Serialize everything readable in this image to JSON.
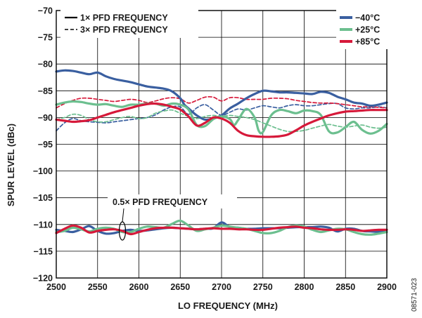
{
  "chart_data": {
    "type": "line",
    "xlabel": "LO FREQUENCY (MHz)",
    "ylabel": "SPUR LEVEL (dBc)",
    "xlim": [
      2500,
      2900
    ],
    "ylim": [
      -120,
      -70
    ],
    "x_ticks": [
      "2500",
      "2550",
      "2600",
      "2650",
      "2700",
      "2750",
      "2800",
      "2850",
      "2900"
    ],
    "y_ticks": [
      "−70",
      "−75",
      "−80",
      "−85",
      "−90",
      "−95",
      "−100",
      "−105",
      "−110",
      "−115",
      "−120"
    ],
    "grid": true,
    "style_legend": {
      "placement": "top-left",
      "entries": [
        {
          "label": "1× PFD FREQUENCY",
          "dash": "solid"
        },
        {
          "label": "3× PFD FREQUENCY",
          "dash": "dashed"
        }
      ]
    },
    "color_legend": {
      "placement": "top-right",
      "entries": [
        {
          "label": "−40°C",
          "color": "#3a5fa0"
        },
        {
          "label": "+25°C",
          "color": "#6cbf8f"
        },
        {
          "label": "+85°C",
          "color": "#d6193a"
        }
      ]
    },
    "annotation": {
      "text": "0.5× PFD FREQUENCY",
      "x": 2575,
      "y": -106,
      "points_to": [
        2583,
        -111
      ]
    },
    "figure_id": "08571-023",
    "series": [
      {
        "name": "−40°C",
        "group": "1× PFD FREQUENCY",
        "color": "#3a5fa0",
        "dash": "solid",
        "x": [
          2500,
          2510,
          2520,
          2530,
          2540,
          2550,
          2560,
          2570,
          2580,
          2590,
          2600,
          2610,
          2620,
          2630,
          2640,
          2650,
          2655,
          2660,
          2670,
          2680,
          2690,
          2700,
          2710,
          2720,
          2730,
          2740,
          2750,
          2760,
          2770,
          2780,
          2790,
          2800,
          2810,
          2820,
          2830,
          2840,
          2850,
          2860,
          2870,
          2880,
          2890,
          2900
        ],
        "y": [
          -81.4,
          -81.2,
          -81.3,
          -81.6,
          -81.9,
          -81.6,
          -82.3,
          -82.8,
          -83.1,
          -83.4,
          -83.8,
          -84.2,
          -84.4,
          -84.6,
          -85.1,
          -86.4,
          -87.6,
          -88.3,
          -89.6,
          -90.4,
          -90.2,
          -89.6,
          -88.3,
          -87.4,
          -86.4,
          -85.6,
          -85.0,
          -85.1,
          -85.3,
          -85.3,
          -85.4,
          -85.5,
          -85.6,
          -85.2,
          -85.4,
          -86.1,
          -86.6,
          -87.2,
          -87.4,
          -87.8,
          -87.6,
          -87.2
        ]
      },
      {
        "name": "+25°C",
        "group": "1× PFD FREQUENCY",
        "color": "#6cbf8f",
        "dash": "solid",
        "x": [
          2500,
          2510,
          2520,
          2530,
          2540,
          2550,
          2560,
          2570,
          2580,
          2590,
          2600,
          2610,
          2620,
          2630,
          2640,
          2650,
          2660,
          2670,
          2680,
          2690,
          2700,
          2710,
          2715,
          2720,
          2730,
          2740,
          2745,
          2750,
          2760,
          2770,
          2780,
          2790,
          2800,
          2810,
          2820,
          2830,
          2840,
          2850,
          2860,
          2870,
          2880,
          2890,
          2900
        ],
        "y": [
          -87.6,
          -87.2,
          -87.0,
          -87.1,
          -87.4,
          -87.6,
          -87.5,
          -87.8,
          -88.0,
          -87.6,
          -87.6,
          -87.4,
          -87.4,
          -87.8,
          -87.4,
          -87.6,
          -88.5,
          -91.4,
          -91.6,
          -90.3,
          -89.8,
          -90.3,
          -91.4,
          -90.5,
          -88.4,
          -90.0,
          -92.5,
          -92.7,
          -89.6,
          -88.6,
          -88.8,
          -89.2,
          -88.7,
          -88.8,
          -89.5,
          -92.6,
          -92.8,
          -91.8,
          -90.8,
          -92.3,
          -93.0,
          -92.5,
          -91.2
        ]
      },
      {
        "name": "+85°C",
        "group": "1× PFD FREQUENCY",
        "color": "#d6193a",
        "dash": "solid",
        "x": [
          2500,
          2510,
          2520,
          2530,
          2540,
          2550,
          2560,
          2570,
          2580,
          2590,
          2600,
          2610,
          2620,
          2630,
          2640,
          2650,
          2660,
          2670,
          2680,
          2690,
          2700,
          2710,
          2720,
          2730,
          2740,
          2750,
          2760,
          2770,
          2780,
          2790,
          2800,
          2810,
          2820,
          2830,
          2840,
          2850,
          2860,
          2870,
          2880,
          2890,
          2900
        ],
        "y": [
          -90.4,
          -90.6,
          -90.8,
          -90.7,
          -90.5,
          -90.0,
          -89.5,
          -89.0,
          -88.6,
          -88.2,
          -87.8,
          -87.5,
          -87.4,
          -87.6,
          -88.0,
          -88.5,
          -89.8,
          -91.5,
          -91.0,
          -90.0,
          -90.2,
          -91.0,
          -92.5,
          -93.3,
          -93.5,
          -93.6,
          -93.6,
          -93.5,
          -93.2,
          -92.4,
          -91.5,
          -90.8,
          -90.2,
          -89.6,
          -89.2,
          -88.9,
          -88.8,
          -88.7,
          -88.6,
          -88.6,
          -88.6
        ]
      },
      {
        "name": "−40°C",
        "group": "3× PFD FREQUENCY",
        "color": "#3a5fa0",
        "dash": "dashed",
        "x": [
          2500,
          2510,
          2520,
          2530,
          2540,
          2550,
          2560,
          2570,
          2580,
          2590,
          2600,
          2610,
          2620,
          2630,
          2640,
          2650,
          2660,
          2670,
          2680,
          2690,
          2700,
          2710,
          2720,
          2730,
          2740,
          2750,
          2760,
          2770,
          2780,
          2790,
          2800,
          2810,
          2820,
          2830,
          2840,
          2850,
          2860,
          2870,
          2880,
          2890,
          2900
        ],
        "y": [
          -92.5,
          -91.0,
          -90.2,
          -90.6,
          -90.8,
          -90.9,
          -91.0,
          -90.8,
          -90.6,
          -90.4,
          -90.2,
          -90.0,
          -89.5,
          -88.6,
          -88.0,
          -88.0,
          -89.4,
          -88.2,
          -87.6,
          -88.6,
          -89.6,
          -89.0,
          -88.4,
          -88.6,
          -88.2,
          -87.8,
          -88.0,
          -88.2,
          -87.8,
          -87.6,
          -87.8,
          -87.8,
          -87.6,
          -87.4,
          -87.4,
          -88.2,
          -88.4,
          -88.2,
          -88.2,
          -88.0,
          -88.2
        ]
      },
      {
        "name": "+25°C",
        "group": "3× PFD FREQUENCY",
        "color": "#6cbf8f",
        "dash": "dashed",
        "x": [
          2500,
          2510,
          2520,
          2530,
          2540,
          2550,
          2560,
          2570,
          2580,
          2590,
          2600,
          2610,
          2620,
          2630,
          2640,
          2650,
          2660,
          2670,
          2680,
          2690,
          2700,
          2710,
          2720,
          2730,
          2740,
          2750,
          2760,
          2770,
          2780,
          2790,
          2800,
          2810,
          2820,
          2830,
          2840,
          2850,
          2860,
          2870,
          2880,
          2890,
          2900
        ],
        "y": [
          -90.4,
          -90.0,
          -89.4,
          -89.6,
          -90.4,
          -90.8,
          -90.8,
          -90.4,
          -90.0,
          -89.8,
          -90.2,
          -90.0,
          -89.2,
          -88.8,
          -88.6,
          -89.2,
          -89.8,
          -90.2,
          -89.8,
          -89.6,
          -89.8,
          -89.6,
          -89.8,
          -90.0,
          -90.4,
          -91.0,
          -91.6,
          -92.2,
          -92.6,
          -92.6,
          -92.4,
          -92.0,
          -91.6,
          -91.3,
          -91.6,
          -91.8,
          -91.6,
          -91.4,
          -91.8,
          -92.0,
          -91.8
        ]
      },
      {
        "name": "+85°C",
        "group": "3× PFD FREQUENCY",
        "color": "#d6193a",
        "dash": "dashed",
        "x": [
          2500,
          2510,
          2520,
          2530,
          2540,
          2550,
          2560,
          2570,
          2580,
          2590,
          2600,
          2610,
          2620,
          2630,
          2640,
          2650,
          2660,
          2670,
          2680,
          2690,
          2700,
          2710,
          2720,
          2730,
          2740,
          2750,
          2760,
          2770,
          2780,
          2790,
          2800,
          2810,
          2820,
          2830,
          2840,
          2850,
          2860,
          2870,
          2880,
          2890,
          2900
        ],
        "y": [
          -88.2,
          -87.4,
          -86.8,
          -86.4,
          -86.4,
          -86.6,
          -86.8,
          -87.0,
          -86.8,
          -86.6,
          -86.8,
          -87.2,
          -86.9,
          -86.5,
          -86.3,
          -86.5,
          -87.3,
          -86.8,
          -86.2,
          -86.2,
          -86.9,
          -86.3,
          -86.3,
          -86.6,
          -86.6,
          -86.6,
          -86.4,
          -86.4,
          -86.5,
          -86.8,
          -87.0,
          -87.2,
          -87.3,
          -87.3,
          -87.4,
          -87.6,
          -87.8,
          -88.0,
          -88.0,
          -88.1,
          -88.2
        ]
      },
      {
        "name": "−40°C",
        "group": "0.5× PFD FREQUENCY",
        "color": "#3a5fa0",
        "dash": "solid",
        "x": [
          2500,
          2510,
          2520,
          2530,
          2540,
          2550,
          2560,
          2570,
          2580,
          2590,
          2600,
          2610,
          2620,
          2630,
          2640,
          2650,
          2660,
          2670,
          2680,
          2690,
          2700,
          2710,
          2720,
          2730,
          2740,
          2750,
          2760,
          2770,
          2780,
          2790,
          2800,
          2810,
          2820,
          2830,
          2840,
          2850,
          2860,
          2870,
          2880,
          2890,
          2900
        ],
        "y": [
          -111.0,
          -111.2,
          -111.4,
          -110.9,
          -110.3,
          -111.2,
          -111.7,
          -111.6,
          -111.2,
          -111.0,
          -111.2,
          -111.1,
          -110.9,
          -110.7,
          -110.6,
          -110.7,
          -110.8,
          -110.9,
          -110.8,
          -110.7,
          -109.6,
          -110.5,
          -110.6,
          -110.8,
          -110.8,
          -110.7,
          -110.7,
          -110.7,
          -110.6,
          -110.5,
          -110.5,
          -110.5,
          -110.4,
          -110.6,
          -111.3,
          -110.8,
          -110.8,
          -111.2,
          -111.3,
          -111.4,
          -111.4
        ]
      },
      {
        "name": "+25°C",
        "group": "0.5× PFD FREQUENCY",
        "color": "#6cbf8f",
        "dash": "solid",
        "x": [
          2500,
          2510,
          2520,
          2530,
          2540,
          2550,
          2560,
          2570,
          2580,
          2590,
          2600,
          2610,
          2620,
          2630,
          2640,
          2650,
          2660,
          2670,
          2680,
          2690,
          2700,
          2710,
          2720,
          2730,
          2740,
          2750,
          2760,
          2770,
          2780,
          2790,
          2800,
          2810,
          2820,
          2830,
          2840,
          2850,
          2860,
          2870,
          2880,
          2890,
          2900
        ],
        "y": [
          -111.4,
          -111.2,
          -110.6,
          -110.9,
          -111.3,
          -110.8,
          -110.6,
          -110.8,
          -111.4,
          -111.4,
          -110.8,
          -110.4,
          -110.5,
          -110.6,
          -109.9,
          -109.3,
          -110.2,
          -111.2,
          -110.9,
          -110.6,
          -110.2,
          -110.4,
          -110.6,
          -110.8,
          -111.2,
          -111.6,
          -111.6,
          -111.2,
          -110.5,
          -110.2,
          -110.4,
          -111.0,
          -111.4,
          -111.1,
          -110.8,
          -110.9,
          -111.4,
          -111.8,
          -111.9,
          -111.7,
          -111.4
        ]
      },
      {
        "name": "+85°C",
        "group": "0.5× PFD FREQUENCY",
        "color": "#d6193a",
        "dash": "solid",
        "x": [
          2500,
          2510,
          2520,
          2530,
          2540,
          2550,
          2560,
          2570,
          2580,
          2590,
          2600,
          2610,
          2620,
          2630,
          2640,
          2650,
          2660,
          2670,
          2680,
          2690,
          2700,
          2710,
          2720,
          2730,
          2740,
          2750,
          2760,
          2770,
          2780,
          2790,
          2800,
          2810,
          2820,
          2830,
          2840,
          2850,
          2860,
          2870,
          2880,
          2890,
          2900
        ],
        "y": [
          -111.6,
          -110.8,
          -110.2,
          -110.6,
          -111.5,
          -111.2,
          -111.0,
          -110.9,
          -111.2,
          -111.8,
          -111.4,
          -111.0,
          -110.7,
          -110.6,
          -110.6,
          -110.7,
          -110.8,
          -110.9,
          -110.8,
          -110.7,
          -110.8,
          -110.8,
          -110.9,
          -110.9,
          -111.0,
          -111.0,
          -110.8,
          -110.6,
          -110.5,
          -110.4,
          -110.6,
          -110.7,
          -110.9,
          -111.0,
          -111.0,
          -110.9,
          -111.0,
          -111.2,
          -111.1,
          -111.0,
          -111.0
        ]
      }
    ]
  }
}
